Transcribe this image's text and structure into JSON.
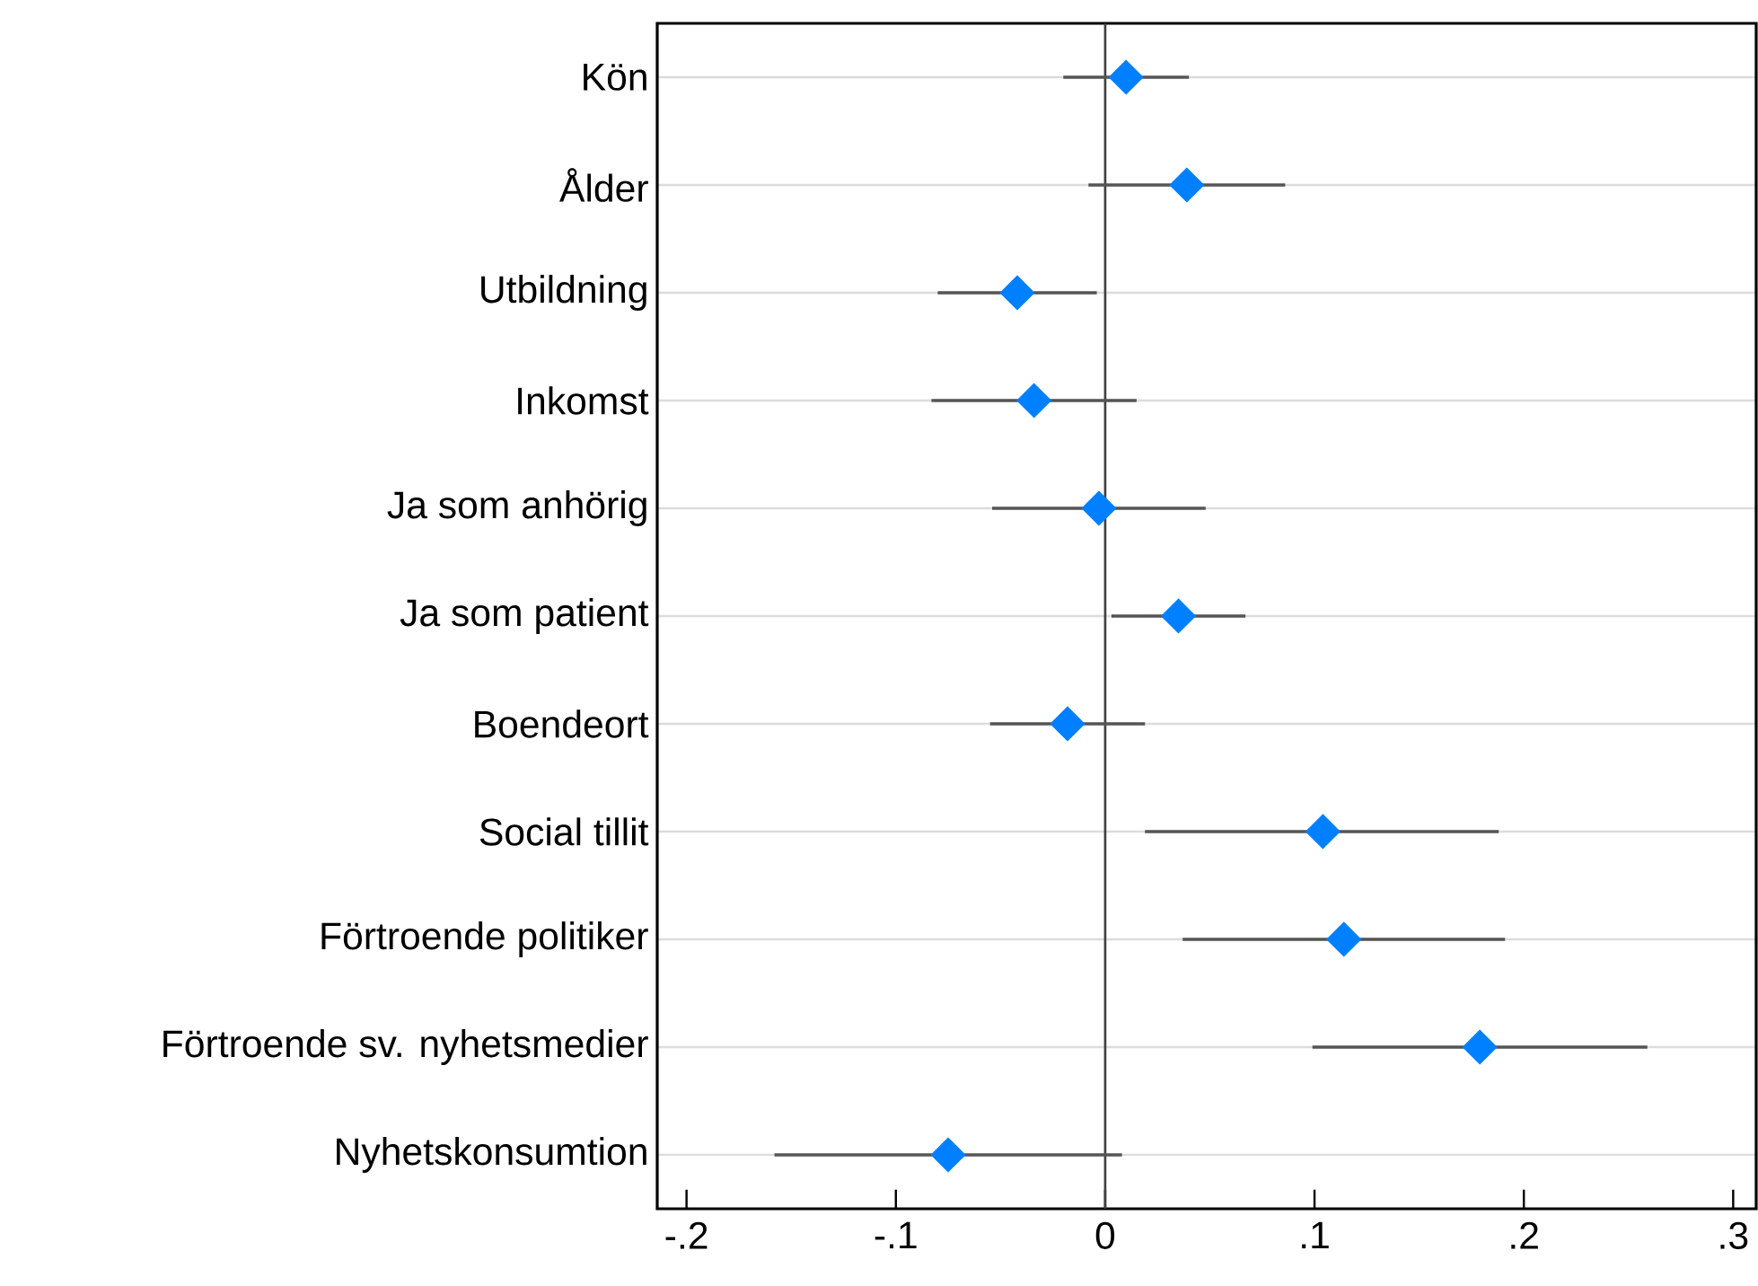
{
  "chart_data": {
    "type": "scatter",
    "orientation": "horizontal",
    "categories": [
      "Kön",
      "Ålder",
      "Utbildning",
      "Inkomst",
      "Ja som anhörig",
      "Ja som patient",
      "Boendeort",
      "Social tillit",
      "Förtroende politiker",
      "Förtroende sv. nyhetsmedier",
      "Nyhetskonsumtion"
    ],
    "values": [
      0.01,
      0.039,
      -0.042,
      -0.034,
      -0.003,
      0.035,
      -0.018,
      0.104,
      0.114,
      0.179,
      -0.075
    ],
    "errors": [
      [
        -0.02,
        0.04
      ],
      [
        -0.008,
        0.086
      ],
      [
        -0.08,
        -0.004
      ],
      [
        -0.083,
        0.015
      ],
      [
        -0.054,
        0.048
      ],
      [
        0.003,
        0.067
      ],
      [
        -0.055,
        0.019
      ],
      [
        0.019,
        0.188
      ],
      [
        0.037,
        0.191
      ],
      [
        0.099,
        0.259
      ],
      [
        -0.158,
        0.008
      ]
    ],
    "color": "#0080ff",
    "marker": "diamond",
    "grid": "y",
    "xlim": [
      -0.214,
      0.311
    ],
    "xticks": [
      {
        "value": -0.2,
        "label": "-.2"
      },
      {
        "value": -0.1,
        "label": "-.1"
      },
      0,
      {
        "value": 0.1,
        "label": ".1"
      },
      {
        "value": 0.2,
        "label": ".2"
      },
      {
        "value": 0.3,
        "label": ".3"
      }
    ],
    "ref_lines": [
      {
        "axis": "x",
        "value": 0,
        "color": "#404040"
      }
    ]
  }
}
